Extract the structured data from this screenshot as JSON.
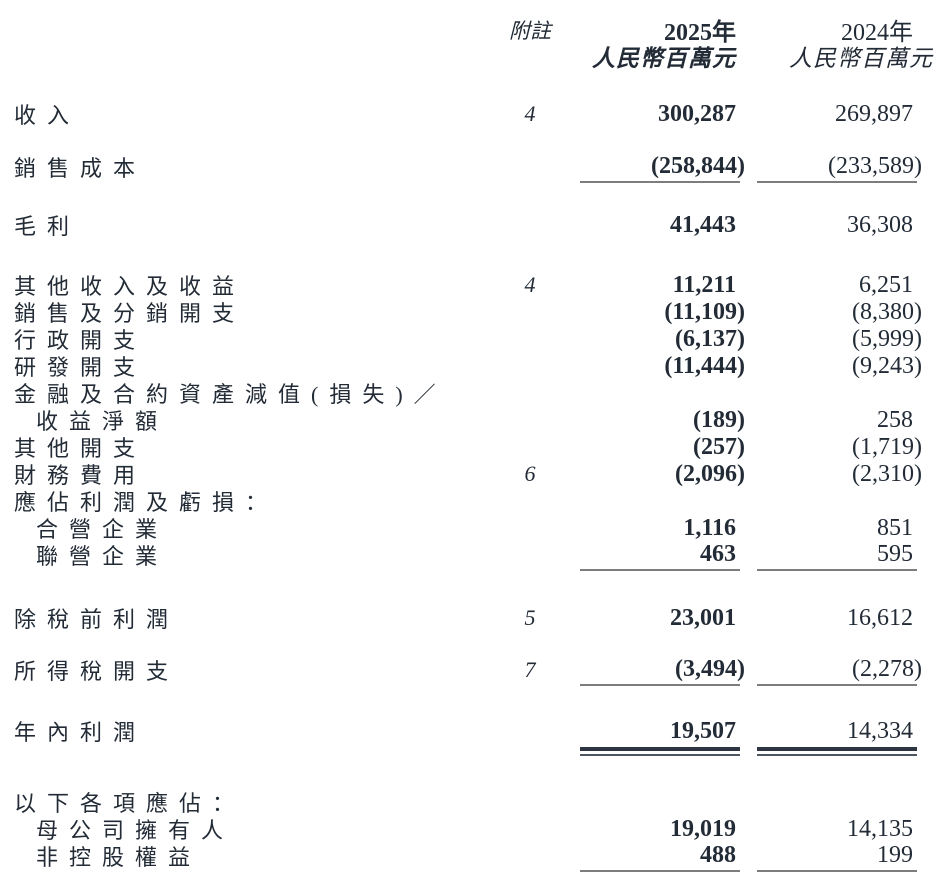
{
  "header": {
    "note_label": "附註",
    "col2025": {
      "year": "2025年",
      "unit": "人民幣百萬元"
    },
    "col2024": {
      "year": "2024年",
      "unit": "人民幣百萬元"
    }
  },
  "rows": [
    {
      "label": "收入",
      "note": "4",
      "v2025": "300,287",
      "v2024": "269,897"
    },
    {
      "label": "銷售成本",
      "v2025": "(258,844)",
      "v2024": "(233,589)",
      "rule": "single"
    },
    {
      "label": "毛利",
      "v2025": "41,443",
      "v2024": "36,308"
    },
    {
      "label": "其他收入及收益",
      "note": "4",
      "v2025": "11,211",
      "v2024": "6,251"
    },
    {
      "label": "銷售及分銷開支",
      "v2025": "(11,109)",
      "v2024": "(8,380)"
    },
    {
      "label": "行政開支",
      "v2025": "(6,137)",
      "v2024": "(5,999)"
    },
    {
      "label": "研發開支",
      "v2025": "(11,444)",
      "v2024": "(9,243)"
    },
    {
      "label": "金融及合約資產減值(損失)／",
      "label_only": true
    },
    {
      "label": "收益淨額",
      "indent": true,
      "v2025": "(189)",
      "v2024": "258"
    },
    {
      "label": "其他開支",
      "v2025": "(257)",
      "v2024": "(1,719)"
    },
    {
      "label": "財務費用",
      "note": "6",
      "v2025": "(2,096)",
      "v2024": "(2,310)"
    },
    {
      "label": "應佔利潤及虧損：",
      "label_only": true
    },
    {
      "label": "合營企業",
      "indent": true,
      "v2025": "1,116",
      "v2024": "851"
    },
    {
      "label": "聯營企業",
      "indent": true,
      "v2025": "463",
      "v2024": "595",
      "rule": "single"
    },
    {
      "label": "除稅前利潤",
      "note": "5",
      "v2025": "23,001",
      "v2024": "16,612"
    },
    {
      "label": "所得稅開支",
      "note": "7",
      "v2025": "(3,494)",
      "v2024": "(2,278)",
      "rule": "single"
    },
    {
      "label": "年內利潤",
      "v2025": "19,507",
      "v2024": "14,334",
      "rule": "double"
    },
    {
      "label": "以下各項應佔：",
      "label_only": true
    },
    {
      "label": "母公司擁有人",
      "indent": true,
      "v2025": "19,019",
      "v2024": "14,135"
    },
    {
      "label": "非控股權益",
      "indent": true,
      "v2025": "488",
      "v2024": "199",
      "rule": "single"
    }
  ],
  "colors": {
    "ink": "#222b36",
    "single_rule": "#7d7d7d",
    "double_rule_thick": "#2c3540",
    "double_rule_thin": "#4d565f"
  }
}
